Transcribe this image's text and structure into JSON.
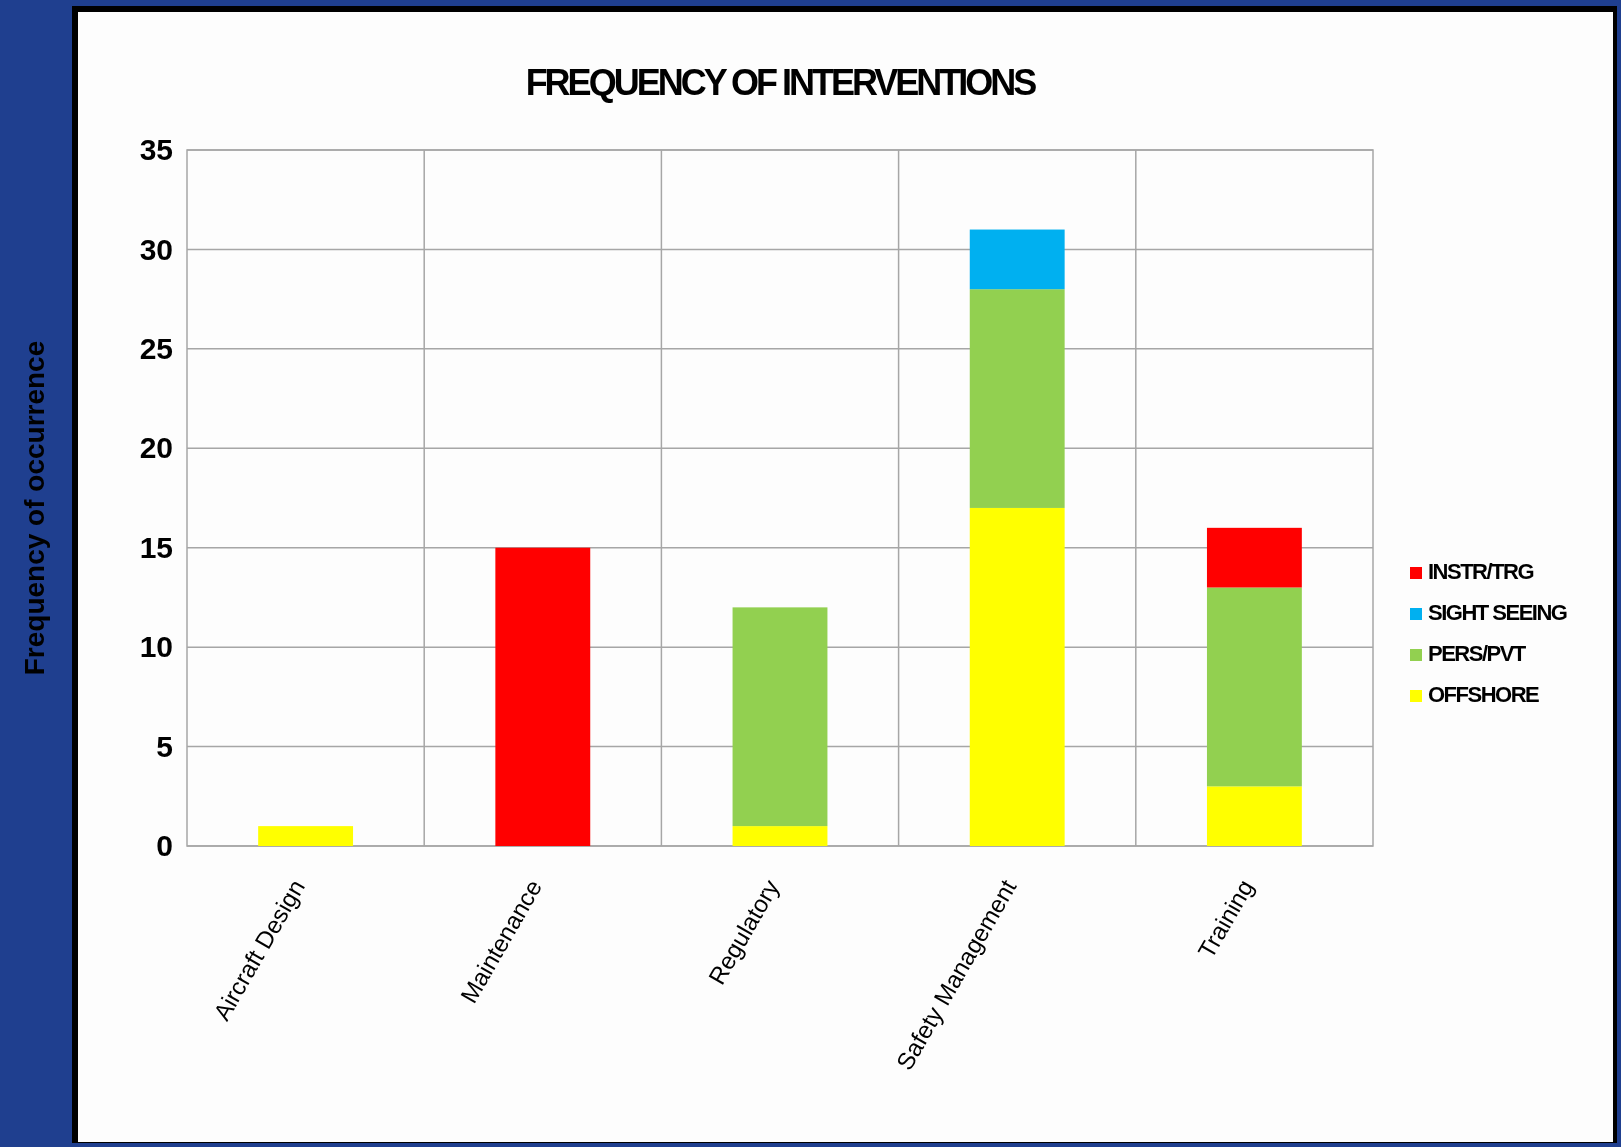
{
  "chart_data": {
    "type": "bar",
    "title": "FREQUENCY OF INTERVENTIONS",
    "ylabel": "Frequency of occurrence",
    "categories": [
      "Aircraft Design",
      "Maintenance",
      "Regulatory",
      "Safety Management",
      "Training"
    ],
    "stacked": true,
    "ylim": [
      0,
      35
    ],
    "yticks": [
      0,
      5,
      10,
      15,
      20,
      25,
      30,
      35
    ],
    "grid": true,
    "legend": "right",
    "series": [
      {
        "name": "OFFSHORE",
        "color": "#ffff00",
        "values": [
          1,
          0,
          1,
          17,
          3
        ]
      },
      {
        "name": "PERS/PVT",
        "color": "#92d050",
        "values": [
          0,
          0,
          11,
          11,
          10
        ]
      },
      {
        "name": "SIGHT SEEING",
        "color": "#00b0f0",
        "values": [
          0,
          0,
          0,
          3,
          0
        ]
      },
      {
        "name": "INSTR/TRG",
        "color": "#ff0000",
        "values": [
          0,
          15,
          0,
          0,
          3
        ]
      }
    ]
  }
}
